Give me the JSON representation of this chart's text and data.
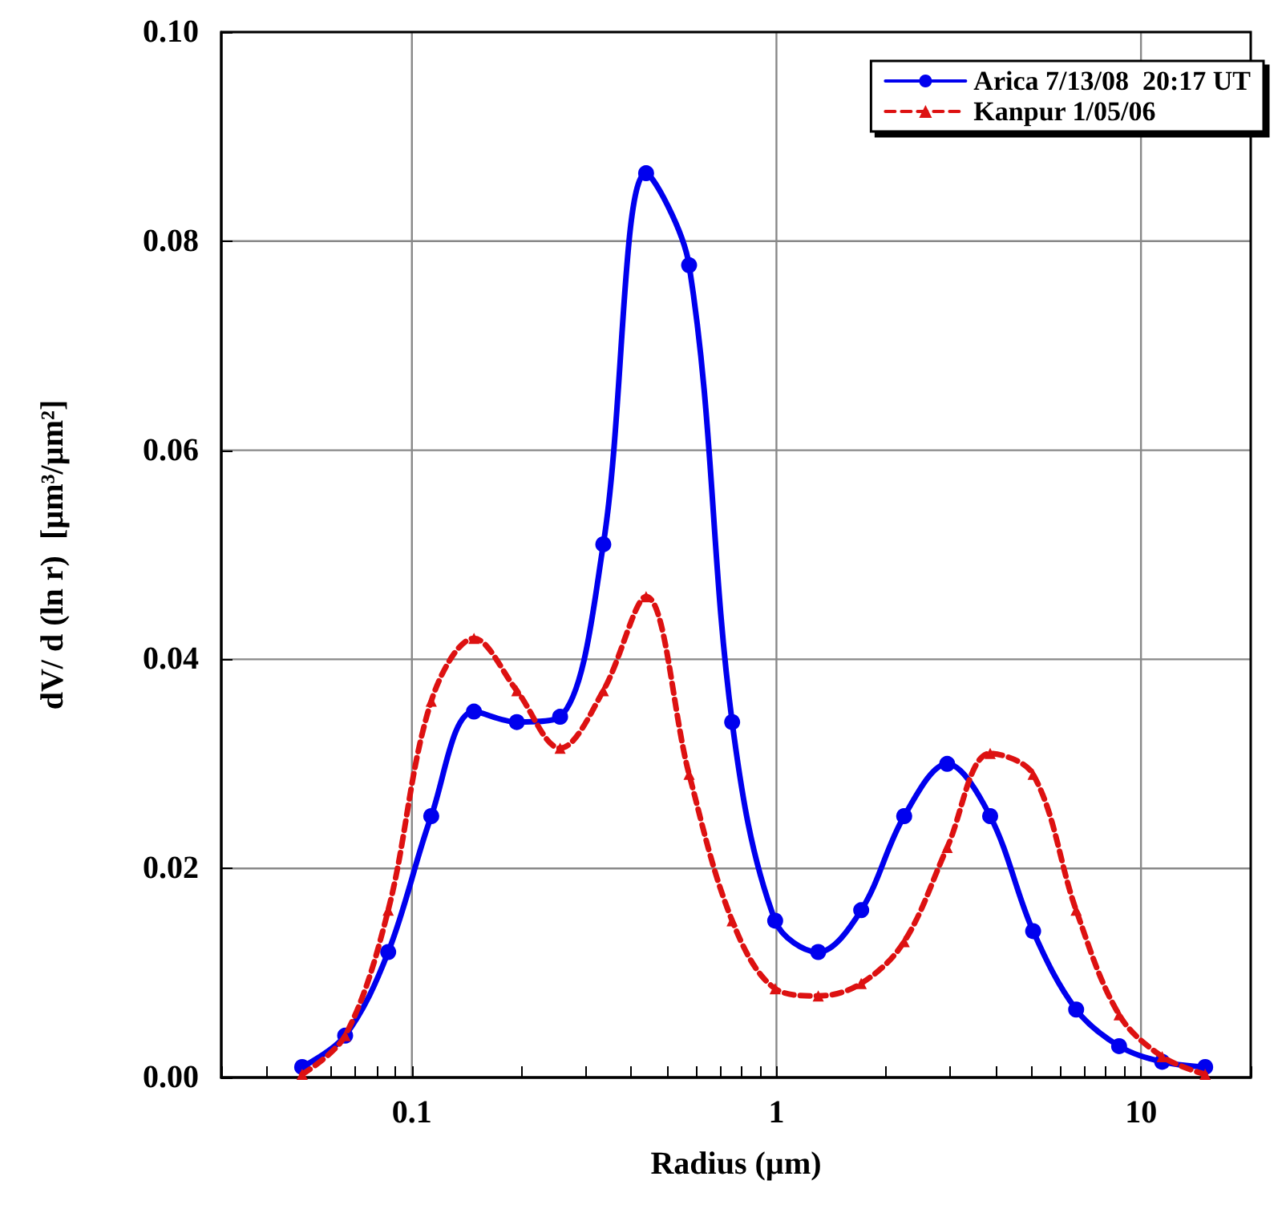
{
  "chart_data": {
    "type": "line",
    "xlabel": "Radius (µm)",
    "ylabel": "dV/ d (ln r)  [µm³/µm²]",
    "x": [
      0.05,
      0.0656,
      0.0861,
      0.113,
      0.148,
      0.194,
      0.255,
      0.335,
      0.439,
      0.576,
      0.756,
      0.992,
      1.302,
      1.708,
      2.241,
      2.94,
      3.857,
      5.06,
      6.64,
      8.71,
      11.43,
      15.0
    ],
    "series": [
      {
        "name": "Arica 7/13/08  20:17 UT",
        "color": "#0000ee",
        "marker": "circle",
        "line_style": "solid",
        "values": [
          0.001,
          0.004,
          0.012,
          0.025,
          0.035,
          0.034,
          0.0345,
          0.051,
          0.0865,
          0.0777,
          0.034,
          0.015,
          0.012,
          0.016,
          0.025,
          0.03,
          0.025,
          0.014,
          0.0065,
          0.003,
          0.0015,
          0.001
        ]
      },
      {
        "name": "Kanpur 1/05/06",
        "color": "#dd1111",
        "marker": "triangle",
        "line_style": "dashed",
        "values": [
          0.0003,
          0.004,
          0.016,
          0.036,
          0.042,
          0.037,
          0.0315,
          0.037,
          0.046,
          0.029,
          0.015,
          0.0085,
          0.0078,
          0.009,
          0.013,
          0.022,
          0.031,
          0.029,
          0.016,
          0.006,
          0.002,
          0.0003
        ]
      }
    ],
    "log": "x",
    "xlim": [
      0.03,
      20
    ],
    "xticks": [
      {
        "value": 0.03,
        "label": null
      },
      {
        "value": 0.04,
        "label": null
      },
      {
        "value": 0.05,
        "label": null
      },
      {
        "value": 0.06,
        "label": null
      },
      {
        "value": 0.07,
        "label": null
      },
      {
        "value": 0.08,
        "label": null
      },
      {
        "value": 0.09,
        "label": null
      },
      0.1,
      {
        "value": 0.2,
        "label": null
      },
      {
        "value": 0.3,
        "label": null
      },
      {
        "value": 0.4,
        "label": null
      },
      {
        "value": 0.5,
        "label": null
      },
      {
        "value": 0.6,
        "label": null
      },
      {
        "value": 0.7,
        "label": null
      },
      {
        "value": 0.8,
        "label": null
      },
      {
        "value": 0.9,
        "label": null
      },
      1,
      {
        "value": 2,
        "label": null
      },
      {
        "value": 3,
        "label": null
      },
      {
        "value": 4,
        "label": null
      },
      {
        "value": 5,
        "label": null
      },
      {
        "value": 6,
        "label": null
      },
      {
        "value": 7,
        "label": null
      },
      {
        "value": 8,
        "label": null
      },
      {
        "value": 9,
        "label": null
      },
      10,
      {
        "value": 20,
        "label": null
      }
    ],
    "ylim": [
      0,
      0.1
    ],
    "yticks": [
      {
        "value": 0,
        "label": "0.00"
      },
      {
        "value": 0.02,
        "label": "0.02"
      },
      {
        "value": 0.04,
        "label": "0.04"
      },
      {
        "value": 0.06,
        "label": "0.06"
      },
      {
        "value": 0.08,
        "label": "0.08"
      },
      {
        "value": 0.1,
        "label": "0.10"
      }
    ],
    "grid": true,
    "legend": "top right"
  }
}
